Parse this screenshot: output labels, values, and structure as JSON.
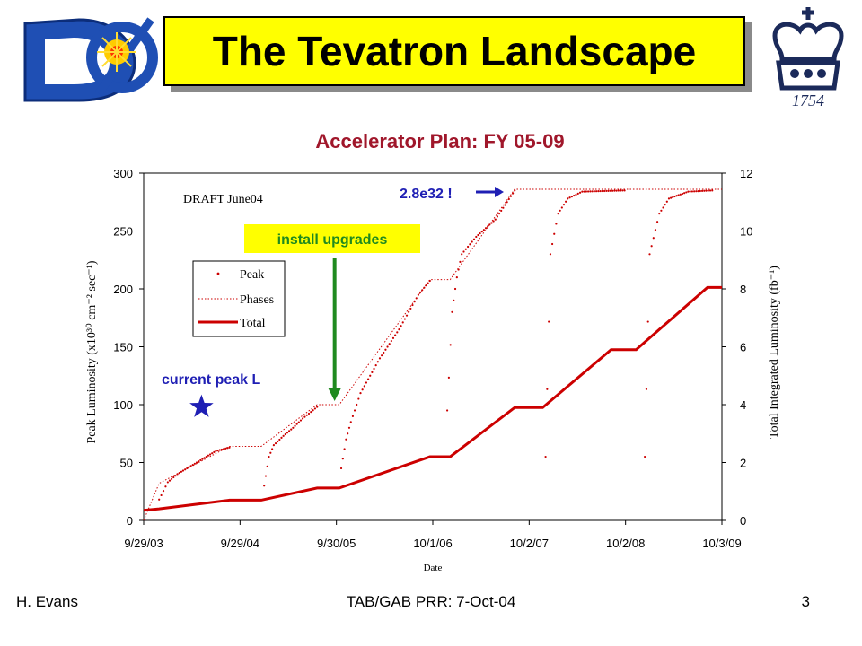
{
  "slide": {
    "title": "The Tevatron Landscape",
    "subtitle": "Accelerator Plan: FY 05-09",
    "logo_left_name": "dzero-logo",
    "logo_right_name": "columbia-crown-logo",
    "logo_right_text": "1754"
  },
  "footer": {
    "author": "H. Evans",
    "event": "TAB/GAB PRR: 7-Oct-04",
    "page": "3"
  },
  "chart_data": {
    "type": "line",
    "xlabel": "Date",
    "ylabel_left": "Peak Luminosity (x10³⁰ cm⁻² sec⁻¹)",
    "ylabel_right": "Total Integrated Luminosity (fb⁻¹)",
    "x_tick_labels": [
      "9/29/03",
      "9/29/04",
      "9/30/05",
      "10/1/06",
      "10/2/07",
      "10/2/08",
      "10/3/09"
    ],
    "x_tick_values": [
      2003.75,
      2004.75,
      2005.75,
      2006.75,
      2007.75,
      2008.75,
      2009.75
    ],
    "xlim": [
      2003.75,
      2009.75
    ],
    "ylim_left": [
      0,
      300
    ],
    "y_ticks_left": [
      0,
      50,
      100,
      150,
      200,
      250,
      300
    ],
    "ylim_right": [
      0,
      12
    ],
    "y_ticks_right": [
      0,
      2,
      4,
      6,
      8,
      10,
      12
    ],
    "grid": false,
    "legend": {
      "placement": "upper-left",
      "entries": [
        "Peak",
        "Phases",
        "Total"
      ]
    },
    "colors": {
      "series": "#cc0000",
      "install_arrow": "#1f8a1f",
      "star": "#1f1fb4",
      "annotation_text": "#1f1fb4",
      "install_text": "#1f8a1f",
      "install_box": "#ffff00"
    },
    "annotations": {
      "draft": "DRAFT June04",
      "peak_callout": "2.8e32 !",
      "install_upgrades": "install upgrades",
      "install_arrow_x": 2005.75,
      "install_arrow_y": 100,
      "current_peak": "current peak L",
      "current_peak_x": 2004.35,
      "current_peak_y": 98
    },
    "series": [
      {
        "name": "Phases",
        "axis": "left",
        "style": "dotted",
        "x": [
          2003.75,
          2003.91,
          2004.64,
          2004.97,
          2005.55,
          2005.78,
          2006.72,
          2006.93,
          2007.6,
          2009.75
        ],
        "y": [
          0,
          32,
          64,
          64,
          100,
          100,
          208,
          208,
          286,
          286
        ]
      },
      {
        "name": "Peak",
        "axis": "left",
        "style": "points",
        "segments": [
          {
            "x": [
              2003.91,
              2004.0,
              2004.1,
              2004.2,
              2004.3,
              2004.4,
              2004.5,
              2004.64
            ],
            "y": [
              18,
              33,
              40,
              45,
              50,
              55,
              60,
              63
            ]
          },
          {
            "x": [
              2005.0,
              2005.05,
              2005.1,
              2005.2,
              2005.3,
              2005.4,
              2005.55
            ],
            "y": [
              30,
              55,
              65,
              73,
              80,
              88,
              98
            ]
          },
          {
            "x": [
              2005.8,
              2005.85,
              2005.9,
              2006.0,
              2006.2,
              2006.4,
              2006.6,
              2006.72
            ],
            "y": [
              45,
              70,
              85,
              110,
              140,
              165,
              195,
              207
            ]
          },
          {
            "x": [
              2006.9,
              2006.95,
              2007.0,
              2007.05,
              2007.2,
              2007.4,
              2007.6
            ],
            "y": [
              95,
              180,
              210,
              230,
              245,
              260,
              285
            ]
          },
          {
            "x": [
              2007.92,
              2007.97,
              2008.05,
              2008.15,
              2008.3,
              2008.74
            ],
            "y": [
              55,
              230,
              265,
              278,
              284,
              285
            ]
          },
          {
            "x": [
              2008.95,
              2009.0,
              2009.1,
              2009.2,
              2009.4,
              2009.65
            ],
            "y": [
              55,
              230,
              265,
              278,
              284,
              285
            ]
          }
        ]
      },
      {
        "name": "Total",
        "axis": "right",
        "style": "line",
        "x": [
          2003.75,
          2003.91,
          2004.64,
          2004.97,
          2005.55,
          2005.78,
          2006.72,
          2006.93,
          2007.6,
          2007.89,
          2008.6,
          2008.86,
          2009.6,
          2009.75
        ],
        "y": [
          0.35,
          0.4,
          0.7,
          0.7,
          1.12,
          1.12,
          2.2,
          2.2,
          3.9,
          3.9,
          5.9,
          5.9,
          8.05,
          8.05
        ]
      }
    ]
  }
}
